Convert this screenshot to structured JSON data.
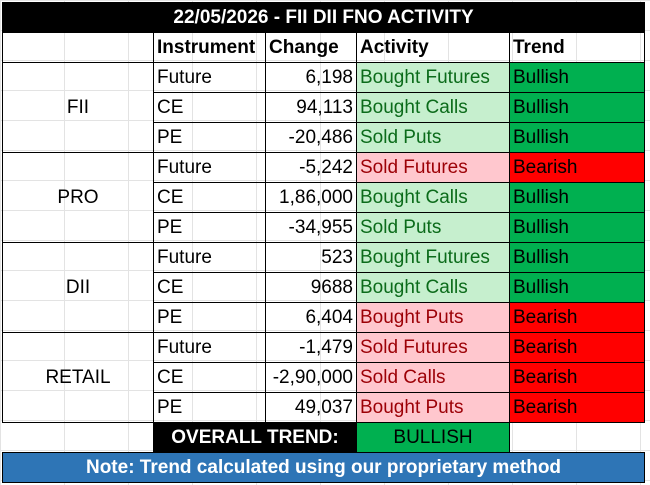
{
  "title": "22/05/2026 - FII DII FNO ACTIVITY",
  "headers": {
    "instrument": "Instrument",
    "change": "Change",
    "activity": "Activity",
    "trend": "Trend"
  },
  "groups": [
    {
      "entity": "FII",
      "rows": [
        {
          "instrument": "Future",
          "change": "6,198",
          "activity": "Bought Futures",
          "trend": "Bullish"
        },
        {
          "instrument": "CE",
          "change": "94,113",
          "activity": "Bought Calls",
          "trend": "Bullish"
        },
        {
          "instrument": "PE",
          "change": "-20,486",
          "activity": "Sold Puts",
          "trend": "Bullish"
        }
      ]
    },
    {
      "entity": "PRO",
      "rows": [
        {
          "instrument": "Future",
          "change": "-5,242",
          "activity": "Sold Futures",
          "trend": "Bearish"
        },
        {
          "instrument": "CE",
          "change": "1,86,000",
          "activity": "Bought Calls",
          "trend": "Bullish"
        },
        {
          "instrument": "PE",
          "change": "-34,955",
          "activity": "Sold Puts",
          "trend": "Bullish"
        }
      ]
    },
    {
      "entity": "DII",
      "rows": [
        {
          "instrument": "Future",
          "change": "523",
          "activity": "Bought Futures",
          "trend": "Bullish"
        },
        {
          "instrument": "CE",
          "change": "9688",
          "activity": "Bought Calls",
          "trend": "Bullish"
        },
        {
          "instrument": "PE",
          "change": "6,404",
          "activity": "Bought Puts",
          "trend": "Bearish"
        }
      ]
    },
    {
      "entity": "RETAIL",
      "rows": [
        {
          "instrument": "Future",
          "change": "-1,479",
          "activity": "Sold Futures",
          "trend": "Bearish"
        },
        {
          "instrument": "CE",
          "change": "-2,90,000",
          "activity": "Sold Calls",
          "trend": "Bearish"
        },
        {
          "instrument": "PE",
          "change": "49,037",
          "activity": "Bought Puts",
          "trend": "Bearish"
        }
      ]
    }
  ],
  "overall": {
    "label": "OVERALL TREND:",
    "value": "BULLISH"
  },
  "note": "Note: Trend calculated using our proprietary method",
  "colors": {
    "bullish": "#00b050",
    "bearish": "#ff0000",
    "positive_activity_bg": "#c6efce",
    "positive_activity_text": "#0b6b1a",
    "negative_activity_bg": "#ffc7ce",
    "negative_activity_text": "#9c0006",
    "note_bg": "#2e75b6"
  }
}
